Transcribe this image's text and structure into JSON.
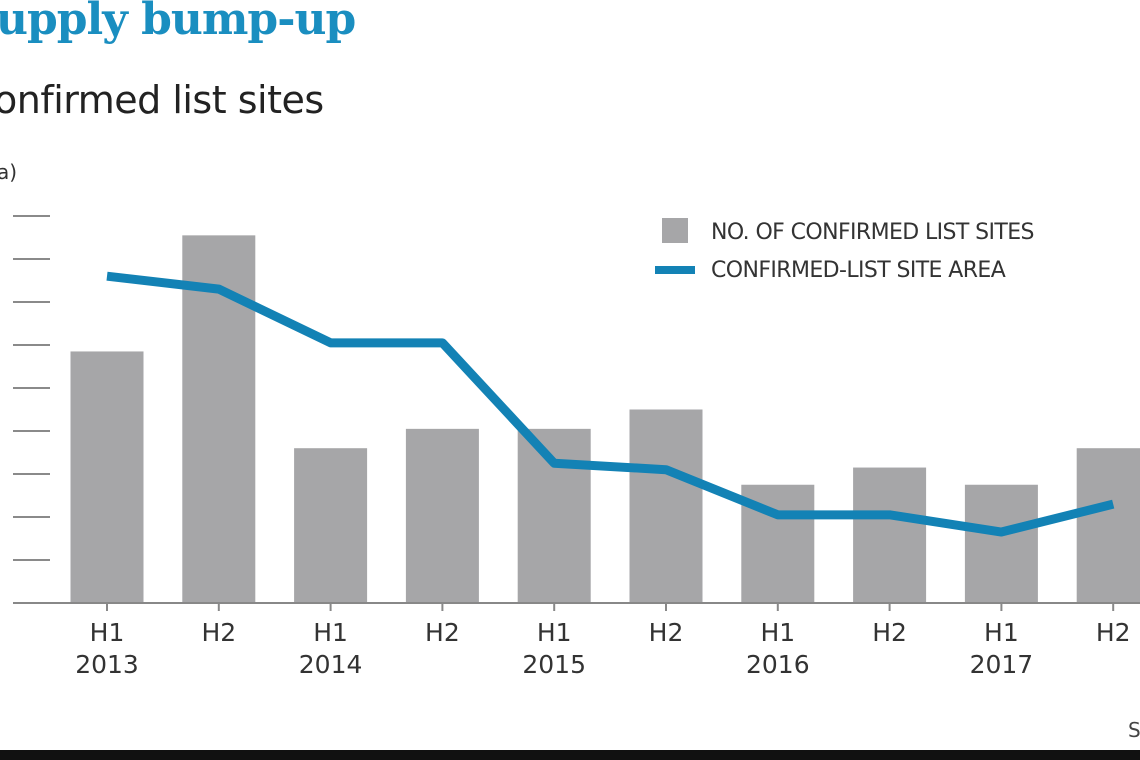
{
  "header": {
    "title": "upply bump-up",
    "subtitle": "onfirmed list sites",
    "unit": "a)"
  },
  "source_label": "S",
  "colors": {
    "title": "#1a8ec0",
    "bar": "#a6a6a8",
    "line": "#1382b5",
    "grid": "#8a8a8a"
  },
  "chart_data": {
    "type": "bar",
    "title": "upply bump-up",
    "subtitle": "onfirmed list sites",
    "xlabel": "",
    "ylabel": "a)",
    "categories": [
      "H1 2013",
      "H2 2013",
      "H1 2014",
      "H2 2014",
      "H1 2015",
      "H2 2015",
      "H1 2016",
      "H2 2016",
      "H1 2017",
      "H2 2017"
    ],
    "tick_labels": [
      {
        "top": "H1",
        "bottom": "2013"
      },
      {
        "top": "H2",
        "bottom": ""
      },
      {
        "top": "H1",
        "bottom": "2014"
      },
      {
        "top": "H2",
        "bottom": ""
      },
      {
        "top": "H1",
        "bottom": "2015"
      },
      {
        "top": "H2",
        "bottom": ""
      },
      {
        "top": "H1",
        "bottom": "2016"
      },
      {
        "top": "H2",
        "bottom": ""
      },
      {
        "top": "H1",
        "bottom": "2017"
      },
      {
        "top": "H2",
        "bottom": ""
      }
    ],
    "y_units_note": "values in gridline units; y tick labels cropped out of view",
    "ylim": [
      0,
      9
    ],
    "gridlines": [
      1,
      2,
      3,
      4,
      5,
      6,
      7,
      8,
      9
    ],
    "grid": true,
    "series": [
      {
        "name": "NO. OF CONFIRMED LIST SITES",
        "type": "bar",
        "values": [
          5.85,
          8.55,
          3.6,
          4.05,
          4.05,
          4.5,
          2.75,
          3.15,
          2.75,
          3.6
        ]
      },
      {
        "name": "CONFIRMED-LIST SITE AREA",
        "type": "line",
        "values": [
          7.6,
          7.3,
          6.05,
          6.05,
          3.25,
          3.1,
          2.05,
          2.05,
          1.65,
          2.3
        ]
      }
    ],
    "legend": {
      "position": "top-right",
      "entries": [
        "NO. OF CONFIRMED LIST SITES",
        "CONFIRMED-LIST SITE AREA"
      ]
    }
  }
}
